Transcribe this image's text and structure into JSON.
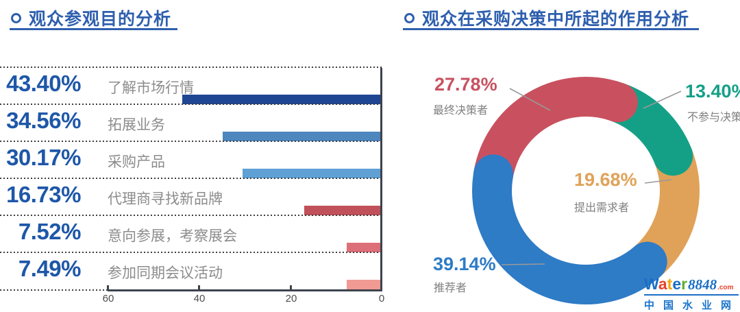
{
  "left_chart": {
    "title": "观众参观目的分析",
    "rows": [
      {
        "percent": "43.40%",
        "value": 43.4,
        "label": "了解市场行情",
        "color": "#1f4693"
      },
      {
        "percent": "34.56%",
        "value": 34.56,
        "label": "拓展业务",
        "color": "#4e86be"
      },
      {
        "percent": "30.17%",
        "value": 30.17,
        "label": "采购产品",
        "color": "#5fa0d5"
      },
      {
        "percent": "16.73%",
        "value": 16.73,
        "label": "代理商寻找新品牌",
        "color": "#c05059"
      },
      {
        "percent": "7.52%",
        "value": 7.52,
        "label": "意向参展，考察展会",
        "color": "#dd6f78"
      },
      {
        "percent": "7.49%",
        "value": 7.49,
        "label": "参加同期会议活动",
        "color": "#f09a93"
      }
    ],
    "axis": {
      "max": 60,
      "ticks": [
        "60",
        "40",
        "20",
        "0"
      ]
    }
  },
  "right_chart": {
    "title": "观众在采购决策中所起的作用分析",
    "donut": {
      "start_angle_deg": 280
    },
    "segments": [
      {
        "percent": "27.78%",
        "value": 27.78,
        "label": "最终决策者",
        "color": "#c9515f"
      },
      {
        "percent": "13.40%",
        "value": 13.4,
        "label": "不参与决策",
        "color": "#14a087"
      },
      {
        "percent": "19.68%",
        "value": 19.68,
        "label": "提出需求者",
        "color": "#e0a258"
      },
      {
        "percent": "39.14%",
        "value": 39.14,
        "label": "推荐者",
        "color": "#2e7bc6"
      }
    ]
  },
  "logo": {
    "letters": [
      {
        "ch": "W",
        "color": "#1a6ec6"
      },
      {
        "ch": "a",
        "color": "#e8432a"
      },
      {
        "ch": "t",
        "color": "#f5a70a"
      },
      {
        "ch": "e",
        "color": "#1a6ec6"
      },
      {
        "ch": "r",
        "color": "#5cae2e"
      }
    ],
    "number": "8848",
    "tld": ".com",
    "subtitle": "中国水业网"
  },
  "chart_data": [
    {
      "type": "bar",
      "orientation": "horizontal",
      "title": "观众参观目的分析",
      "categories": [
        "了解市场行情",
        "拓展业务",
        "采购产品",
        "代理商寻找新品牌",
        "意向参展，考察展会",
        "参加同期会议活动"
      ],
      "values": [
        43.4,
        34.56,
        30.17,
        16.73,
        7.52,
        7.49
      ],
      "unit": "%",
      "xlabel": "",
      "ylabel": "",
      "axis_ticks": [
        60,
        40,
        20,
        0
      ],
      "xlim": [
        60,
        0
      ],
      "grid": "dotted-row-separators",
      "bar_colors": [
        "#1f4693",
        "#4e86be",
        "#5fa0d5",
        "#c05059",
        "#dd6f78",
        "#f09a93"
      ]
    },
    {
      "type": "pie",
      "subtype": "donut",
      "title": "观众在采购决策中所起的作用分析",
      "categories": [
        "最终决策者",
        "不参与决策",
        "提出需求者",
        "推荐者"
      ],
      "values": [
        27.78,
        13.4,
        19.68,
        39.14
      ],
      "unit": "%",
      "colors": [
        "#c9515f",
        "#14a087",
        "#e0a258",
        "#2e7bc6"
      ],
      "start_angle_deg_clockwise_from_top": 280,
      "legend_position": "labels-with-leader-lines",
      "rounded_segment_caps": true
    }
  ]
}
